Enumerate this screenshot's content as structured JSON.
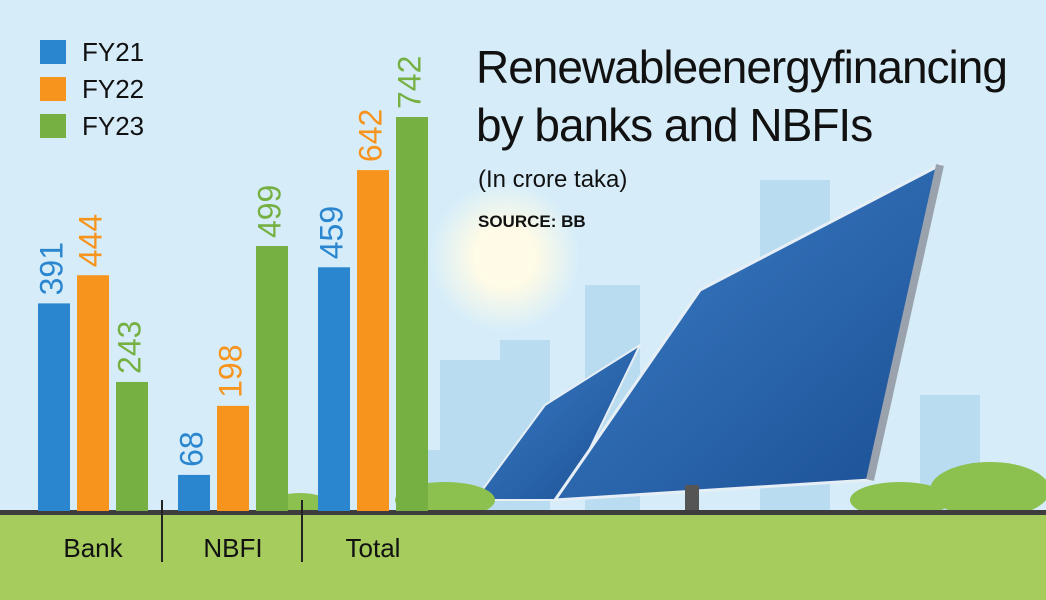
{
  "chart_data": {
    "type": "bar",
    "title": "Renewableenergyfinancing by banks and NBFIs",
    "subtitle": "(In crore taka)",
    "source": "SOURCE: BB",
    "categories": [
      "Bank",
      "NBFI",
      "Total"
    ],
    "series": [
      {
        "name": "FY21",
        "color": "#2a86cf",
        "values": [
          391,
          68,
          459
        ]
      },
      {
        "name": "FY22",
        "color": "#f7941d",
        "values": [
          444,
          198,
          642
        ]
      },
      {
        "name": "FY23",
        "color": "#76b043",
        "values": [
          243,
          499,
          742
        ]
      }
    ]
  }
}
